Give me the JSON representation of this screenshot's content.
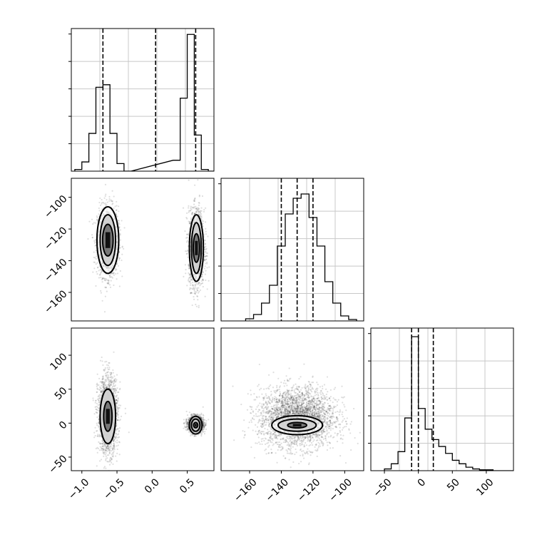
{
  "chart_data": [
    {
      "type": "histogram",
      "panel": "diag-1",
      "grid": true,
      "xlim": [
        -1.15,
        0.88
      ],
      "bins_x": [
        -1.05,
        -0.95,
        -0.85,
        -0.75,
        -0.65,
        -0.55,
        -0.45,
        -0.35,
        0.35,
        0.45,
        0.55,
        0.65,
        0.75,
        0.85
      ],
      "counts": [
        2,
        11,
        45,
        100,
        103,
        45,
        9,
        0,
        13,
        87,
        163,
        43,
        2,
        0
      ],
      "quantile_lines": [
        -0.7,
        0.05,
        0.62
      ],
      "ylim": [
        0,
        170
      ]
    },
    {
      "type": "scatter",
      "panel": "pair-x1-x2",
      "xlim": [
        -1.15,
        0.88
      ],
      "ylim": [
        -178,
        -88
      ],
      "yticks": [
        "−100",
        "−120",
        "−140",
        "−160"
      ],
      "ytick_values": [
        -100,
        -120,
        -140,
        -160
      ],
      "clusters": [
        {
          "cx": -0.63,
          "cy": -128,
          "sx": 0.075,
          "sy": 11,
          "n": 1500
        },
        {
          "cx": 0.63,
          "cy": -132,
          "sx": 0.055,
          "sy": 12,
          "n": 1700
        }
      ],
      "contours": [
        {
          "cx": -0.63,
          "cy": -127,
          "rx": [
            0.075,
            0.11,
            0.155
          ],
          "ry": [
            10,
            16,
            21
          ]
        },
        {
          "cx": 0.63,
          "cy": -132,
          "rx": [
            0.045,
            0.07,
            0.1
          ],
          "ry": [
            9,
            16,
            21
          ]
        }
      ]
    },
    {
      "type": "histogram",
      "panel": "diag-2",
      "grid": true,
      "xlim": [
        -178,
        -88
      ],
      "bins_x": [
        -160,
        -155,
        -150,
        -145,
        -140,
        -135,
        -130,
        -125,
        -120,
        -115,
        -110,
        -105,
        -100,
        -95
      ],
      "counts": [
        3,
        9,
        25,
        50,
        105,
        150,
        172,
        178,
        145,
        105,
        55,
        25,
        7,
        2
      ],
      "quantile_lines": [
        -140,
        -130,
        -120
      ],
      "ylim": [
        0,
        200
      ]
    },
    {
      "type": "scatter",
      "panel": "pair-x1-x3",
      "xlim": [
        -1.15,
        0.88
      ],
      "ylim": [
        -70,
        140
      ],
      "yticks": [
        "100",
        "50",
        "0",
        "−50"
      ],
      "ytick_values": [
        100,
        50,
        0,
        -50
      ],
      "xticks": [
        "−1.0",
        "−0.5",
        "0.0",
        "0.5"
      ],
      "xtick_values": [
        -1.0,
        -0.5,
        0.0,
        0.5
      ],
      "clusters": [
        {
          "cx": -0.63,
          "cy": 12,
          "sx": 0.07,
          "sy": 28,
          "n": 1800
        },
        {
          "cx": 0.62,
          "cy": -2,
          "sx": 0.055,
          "sy": 6,
          "n": 1500
        }
      ],
      "contours": [
        {
          "cx": -0.63,
          "cy": 10,
          "rx": [
            0.06,
            0.11,
            0.11
          ],
          "ry": [
            22,
            40,
            40
          ]
        },
        {
          "cx": 0.62,
          "cy": -3,
          "rx": [
            0.03,
            0.06,
            0.09
          ],
          "ry": [
            4,
            9,
            13
          ]
        }
      ]
    },
    {
      "type": "scatter",
      "panel": "pair-x2-x3",
      "xlim": [
        -178,
        -88
      ],
      "ylim": [
        -70,
        140
      ],
      "xticks": [
        "−160",
        "−140",
        "−120",
        "−100"
      ],
      "xtick_values": [
        -160,
        -140,
        -120,
        -100
      ],
      "clusters": [
        {
          "cx": -130,
          "cy": 8,
          "sx": 12,
          "sy": 22,
          "n": 3000
        }
      ],
      "contours": [
        {
          "cx": -130,
          "cy": -3,
          "rx": [
            6,
            12,
            16
          ],
          "ry": [
            4,
            9,
            14
          ]
        }
      ]
    },
    {
      "type": "histogram",
      "panel": "diag-3",
      "grid": true,
      "xlim": [
        -70,
        140
      ],
      "bins_x": [
        -45,
        -35,
        -25,
        -15,
        -5,
        5,
        15,
        25,
        35,
        45,
        55,
        65,
        75,
        85,
        95,
        105,
        115,
        125,
        135
      ],
      "counts": [
        2,
        8,
        22,
        61,
        155,
        72,
        48,
        36,
        28,
        20,
        12,
        8,
        4,
        2,
        1,
        1,
        0,
        0,
        0
      ],
      "quantile_lines": [
        -10,
        0,
        22
      ],
      "ylim": [
        0,
        165
      ],
      "xticks": [
        "−50",
        "0",
        "50",
        "100"
      ],
      "xtick_values": [
        -50,
        0,
        50,
        100
      ]
    }
  ]
}
